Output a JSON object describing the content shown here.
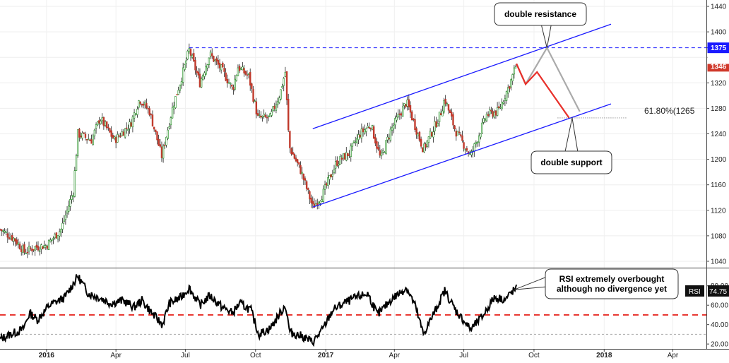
{
  "chart_data": [
    {
      "type": "candlestick",
      "panel": "price",
      "x_range": [
        "2015-11-01",
        "2018-05-15"
      ],
      "ylim": [
        1030,
        1450
      ],
      "y_ticks": [
        1040,
        1080,
        1120,
        1160,
        1200,
        1240,
        1280,
        1320,
        1360,
        1400,
        1440
      ],
      "x_ticks": [
        {
          "date": "2016-01-01",
          "label": "2016"
        },
        {
          "date": "2016-04-01",
          "label": "Apr"
        },
        {
          "date": "2016-07-01",
          "label": "Jul"
        },
        {
          "date": "2016-10-01",
          "label": "Oct"
        },
        {
          "date": "2017-01-01",
          "label": "2017"
        },
        {
          "date": "2017-04-01",
          "label": "Apr"
        },
        {
          "date": "2017-07-01",
          "label": "Jul"
        },
        {
          "date": "2017-10-01",
          "label": "Oct"
        },
        {
          "date": "2018-01-01",
          "label": "2018"
        },
        {
          "date": "2018-04-01",
          "label": "Apr"
        }
      ],
      "close_path": [
        [
          "2015-11-01",
          1090
        ],
        [
          "2015-11-20",
          1075
        ],
        [
          "2015-12-03",
          1055
        ],
        [
          "2015-12-17",
          1062
        ],
        [
          "2016-01-01",
          1065
        ],
        [
          "2016-01-20",
          1090
        ],
        [
          "2016-02-05",
          1150
        ],
        [
          "2016-02-11",
          1240
        ],
        [
          "2016-02-29",
          1230
        ],
        [
          "2016-03-11",
          1265
        ],
        [
          "2016-03-30",
          1230
        ],
        [
          "2016-04-20",
          1255
        ],
        [
          "2016-05-02",
          1295
        ],
        [
          "2016-05-15",
          1275
        ],
        [
          "2016-05-31",
          1205
        ],
        [
          "2016-06-15",
          1285
        ],
        [
          "2016-06-24",
          1320
        ],
        [
          "2016-07-06",
          1372
        ],
        [
          "2016-07-20",
          1320
        ],
        [
          "2016-08-02",
          1365
        ],
        [
          "2016-08-18",
          1340
        ],
        [
          "2016-09-01",
          1310
        ],
        [
          "2016-09-08",
          1345
        ],
        [
          "2016-09-22",
          1330
        ],
        [
          "2016-10-04",
          1265
        ],
        [
          "2016-10-20",
          1265
        ],
        [
          "2016-11-02",
          1303
        ],
        [
          "2016-11-09",
          1337
        ],
        [
          "2016-11-14",
          1220
        ],
        [
          "2016-11-30",
          1180
        ],
        [
          "2016-12-15",
          1125
        ],
        [
          "2016-12-28",
          1145
        ],
        [
          "2017-01-15",
          1195
        ],
        [
          "2017-02-01",
          1210
        ],
        [
          "2017-02-15",
          1240
        ],
        [
          "2017-03-01",
          1255
        ],
        [
          "2017-03-14",
          1200
        ],
        [
          "2017-03-27",
          1245
        ],
        [
          "2017-04-17",
          1290
        ],
        [
          "2017-05-09",
          1215
        ],
        [
          "2017-05-31",
          1270
        ],
        [
          "2017-06-06",
          1295
        ],
        [
          "2017-06-20",
          1245
        ],
        [
          "2017-07-10",
          1205
        ],
        [
          "2017-07-31",
          1270
        ],
        [
          "2017-08-15",
          1275
        ],
        [
          "2017-08-31",
          1320
        ],
        [
          "2017-09-08",
          1350
        ]
      ],
      "ohlc_interval_days": 2,
      "annotations": {
        "resistance_line": {
          "value": 1375,
          "from": "2016-07-06",
          "to": "2018-05-15",
          "color": "#1a1aff",
          "style": "dashed"
        },
        "channel_upper": [
          [
            "2016-12-15",
            1248
          ],
          [
            "2018-01-10",
            1412
          ]
        ],
        "channel_lower": [
          [
            "2016-12-15",
            1125
          ],
          [
            "2018-01-10",
            1287
          ]
        ],
        "channel_color": "#1a1aff",
        "red_projection": [
          [
            "2017-09-08",
            1350
          ],
          [
            "2017-09-20",
            1318
          ],
          [
            "2017-10-05",
            1337
          ],
          [
            "2017-11-16",
            1265
          ]
        ],
        "gray_projection": [
          [
            "2017-09-08",
            1350
          ],
          [
            "2017-09-20",
            1318
          ],
          [
            "2017-10-18",
            1375
          ],
          [
            "2017-11-30",
            1275
          ]
        ],
        "fib_level": {
          "value": 1265,
          "from": "2017-11-01",
          "to": "2018-01-31",
          "label": "61.80%(1265"
        },
        "callout_resistance": {
          "text": "double resistance",
          "points_to": [
            "2017-10-18",
            1375
          ]
        },
        "callout_support": {
          "text": "double support",
          "points_to": [
            "2017-11-20",
            1265
          ]
        }
      },
      "price_badges": [
        {
          "value": 1375,
          "label": "1375",
          "color": "#1a1aff"
        },
        {
          "value": 1346,
          "label": "1346",
          "color": "#d0392b"
        },
        {
          "label": "1360",
          "color": "#ffffff",
          "text_color": "#222222"
        }
      ],
      "candle_colors": {
        "up": "#1a8a1a",
        "down": "#c0392b",
        "wick": "#222222"
      }
    },
    {
      "type": "line",
      "panel": "rsi",
      "name": "RSI",
      "ylim": [
        15,
        98
      ],
      "y_ticks": [
        {
          "value": 20,
          "label": "20.00"
        },
        {
          "value": 40,
          "label": "40.00"
        },
        {
          "value": 60,
          "label": "60.00"
        },
        {
          "value": 80,
          "label": "80.00"
        }
      ],
      "levels": [
        {
          "value": 50,
          "color": "#e8302a",
          "style": "dashed"
        },
        {
          "value": 30,
          "color": "#aaaaaa",
          "style": "dashed"
        }
      ],
      "series": [
        {
          "color": "#000000",
          "points": [
            [
              "2015-11-01",
              25
            ],
            [
              "2015-11-15",
              30
            ],
            [
              "2015-12-01",
              35
            ],
            [
              "2015-12-10",
              52
            ],
            [
              "2015-12-20",
              45
            ],
            [
              "2016-01-05",
              60
            ],
            [
              "2016-01-25",
              68
            ],
            [
              "2016-02-11",
              90
            ],
            [
              "2016-02-25",
              72
            ],
            [
              "2016-03-10",
              68
            ],
            [
              "2016-03-25",
              62
            ],
            [
              "2016-04-10",
              65
            ],
            [
              "2016-04-25",
              58
            ],
            [
              "2016-05-05",
              65
            ],
            [
              "2016-05-20",
              50
            ],
            [
              "2016-06-01",
              40
            ],
            [
              "2016-06-10",
              62
            ],
            [
              "2016-06-25",
              68
            ],
            [
              "2016-07-06",
              78
            ],
            [
              "2016-07-20",
              60
            ],
            [
              "2016-08-02",
              70
            ],
            [
              "2016-08-18",
              58
            ],
            [
              "2016-09-01",
              52
            ],
            [
              "2016-09-10",
              62
            ],
            [
              "2016-09-25",
              55
            ],
            [
              "2016-10-05",
              30
            ],
            [
              "2016-10-20",
              36
            ],
            [
              "2016-11-05",
              55
            ],
            [
              "2016-11-09",
              60
            ],
            [
              "2016-11-15",
              32
            ],
            [
              "2016-12-01",
              28
            ],
            [
              "2016-12-15",
              22
            ],
            [
              "2016-12-28",
              35
            ],
            [
              "2017-01-10",
              55
            ],
            [
              "2017-01-25",
              62
            ],
            [
              "2017-02-10",
              68
            ],
            [
              "2017-02-25",
              72
            ],
            [
              "2017-03-10",
              50
            ],
            [
              "2017-03-28",
              66
            ],
            [
              "2017-04-17",
              78
            ],
            [
              "2017-04-28",
              60
            ],
            [
              "2017-05-09",
              30
            ],
            [
              "2017-05-25",
              55
            ],
            [
              "2017-06-06",
              75
            ],
            [
              "2017-06-20",
              55
            ],
            [
              "2017-07-10",
              35
            ],
            [
              "2017-07-25",
              48
            ],
            [
              "2017-08-10",
              68
            ],
            [
              "2017-08-25",
              66
            ],
            [
              "2017-09-01",
              73
            ],
            [
              "2017-09-08",
              77
            ]
          ]
        }
      ],
      "badge": {
        "name_label": "RSI",
        "value_label": "74.75"
      },
      "callout": {
        "text_line1": "RSI extremely overbought",
        "text_line2": "although no divergence yet"
      }
    }
  ]
}
